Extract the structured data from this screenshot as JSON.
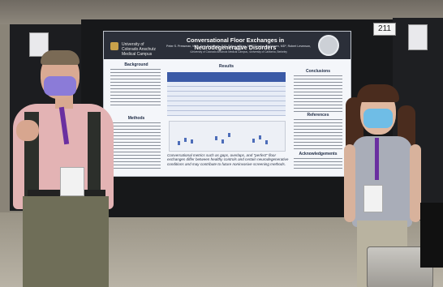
{
  "scene": {
    "booth_number": "211",
    "colors": {
      "poster_header": "#2b2f39",
      "poster_body": "#f4f6fa",
      "table_header": "#3b5aa6",
      "left_mask": "#8b7bd8",
      "right_mask": "#6fbde6"
    }
  },
  "poster": {
    "title": "Conversational Floor Exchanges in Neurodegenerative Disorders",
    "institution_left": "University of Colorado Anschutz Medical Campus",
    "authors": "Peter S. Pressman, MD¹, Jane Bradmorty, BA¹, Erika Lumbao, MS¹, Gordon Hakkinnen, MD², Robert Levenson, PhD³",
    "affiliations": "¹University of Colorado Anschutz Medical Campus, ²University of California, Berkeley",
    "sections": {
      "background": "Background",
      "methods": "Methods",
      "results": "Results",
      "conclusions": "Conclusions",
      "references": "References",
      "acknowledgements": "Acknowledgements"
    },
    "footnote": "Conversational metrics such as gaps, overlaps, and \"perfect\" floor exchanges differ between healthy controls and certain neurodegenerative conditions and may contribute to future noninvasive screening methods."
  }
}
